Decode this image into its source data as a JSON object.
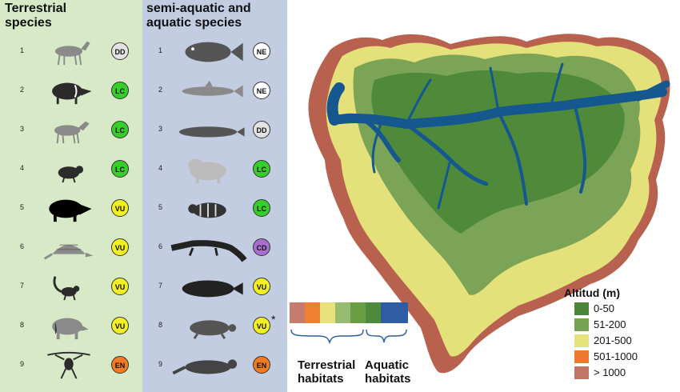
{
  "terrestrial": {
    "title_line1": "Terrestrial",
    "title_line2": "species",
    "species": [
      {
        "num": "1",
        "status": "DD",
        "color": "#e3e3e3",
        "icon": "deer-icon"
      },
      {
        "num": "2",
        "status": "LC",
        "color": "#36cf2a",
        "icon": "peccary-icon"
      },
      {
        "num": "3",
        "status": "LC",
        "color": "#36cf2a",
        "icon": "brocket-deer-icon"
      },
      {
        "num": "4",
        "status": "LC",
        "color": "#36cf2a",
        "icon": "agouti-icon"
      },
      {
        "num": "5",
        "status": "VU",
        "color": "#f2ef22",
        "icon": "white-lipped-peccary-icon"
      },
      {
        "num": "6",
        "status": "VU",
        "color": "#f2ef22",
        "icon": "armadillo-icon"
      },
      {
        "num": "7",
        "status": "VU",
        "color": "#f2ef22",
        "icon": "monkey-icon"
      },
      {
        "num": "8",
        "status": "VU",
        "color": "#f2ef22",
        "icon": "tapir-icon"
      },
      {
        "num": "9",
        "status": "EN",
        "color": "#f27b22",
        "icon": "spider-monkey-icon"
      }
    ]
  },
  "aquatic": {
    "title_line1": "semi-aquatic and",
    "title_line2": "aquatic species",
    "species": [
      {
        "num": "1",
        "status": "NE",
        "color": "#ffffff",
        "icon": "fish-icon"
      },
      {
        "num": "2",
        "status": "NE",
        "color": "#ffffff",
        "icon": "catfish-icon"
      },
      {
        "num": "3",
        "status": "DD",
        "color": "#e3e3e3",
        "icon": "arapaima-icon"
      },
      {
        "num": "4",
        "status": "LC",
        "color": "#36cf2a",
        "icon": "capybara-icon"
      },
      {
        "num": "5",
        "status": "LC",
        "color": "#36cf2a",
        "icon": "paca-icon"
      },
      {
        "num": "6",
        "status": "CD",
        "color": "#a96fd0",
        "icon": "caiman-icon"
      },
      {
        "num": "7",
        "status": "VU",
        "color": "#f2ef22",
        "icon": "manatee-icon"
      },
      {
        "num": "8",
        "status": "VU",
        "color": "#f2ef22",
        "icon": "turtle-icon",
        "marker": "*"
      },
      {
        "num": "9",
        "status": "EN",
        "color": "#f27b22",
        "icon": "otter-icon"
      }
    ]
  },
  "habitat_bar": {
    "terrestrial_colors": [
      "#c57b6e",
      "#ee8032",
      "#e8e07b",
      "#97bb70",
      "#6a9e45",
      "#4e8a3c"
    ],
    "aquatic_color": "#2e5da4",
    "terrestrial_label1": "Terrestrial",
    "terrestrial_label2": "habitats",
    "aquatic_label1": "Aquatic",
    "aquatic_label2": "habitats"
  },
  "legend": {
    "title": "Altitud (m)",
    "items": [
      {
        "label": "0-50",
        "color": "#4c8537"
      },
      {
        "label": "51-200",
        "color": "#76a254"
      },
      {
        "label": "201-500",
        "color": "#e6e37c"
      },
      {
        "label": "501-1000",
        "color": "#ec7a2e"
      },
      {
        "label": "> 1000",
        "color": "#c27566"
      }
    ]
  },
  "map_colors": {
    "lowland": "#4f8a3b",
    "midland": "#7ca456",
    "upland": "#e4e07a",
    "highland": "#e67c36",
    "andes": "#b8614f",
    "water": "#15578f"
  }
}
